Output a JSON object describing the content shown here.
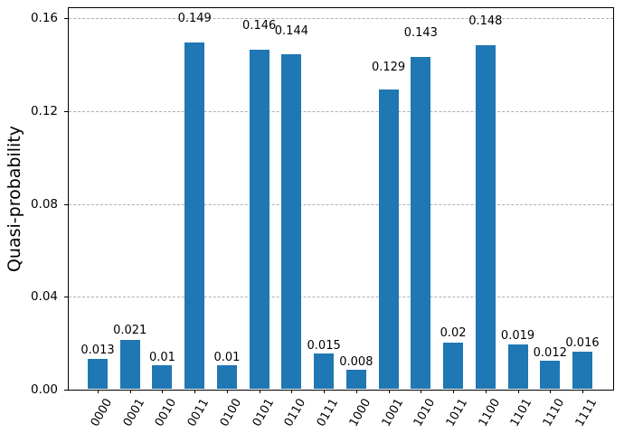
{
  "chart_data": {
    "type": "bar",
    "title": "",
    "xlabel": "",
    "ylabel": "Quasi-probability",
    "categories": [
      "0000",
      "0001",
      "0010",
      "0011",
      "0100",
      "0101",
      "0110",
      "0111",
      "1000",
      "1001",
      "1010",
      "1011",
      "1100",
      "1101",
      "1110",
      "1111"
    ],
    "values": [
      0.013,
      0.021,
      0.01,
      0.149,
      0.01,
      0.146,
      0.144,
      0.015,
      0.008,
      0.129,
      0.143,
      0.02,
      0.148,
      0.019,
      0.012,
      0.016
    ],
    "value_labels": [
      "0.013",
      "0.021",
      "0.01",
      "0.149",
      "0.01",
      "0.146",
      "0.144",
      "0.015",
      "0.008",
      "0.129",
      "0.143",
      "0.02",
      "0.148",
      "0.019",
      "0.012",
      "0.016"
    ],
    "ylim": [
      0,
      0.1643
    ],
    "ytick_values": [
      0,
      0.04,
      0.08,
      0.12,
      0.16
    ],
    "ytick_labels": [
      "0.00",
      "0.04",
      "0.08",
      "0.12",
      "0.16"
    ],
    "bar_color": "#1f77b4",
    "grid": {
      "axis": "y",
      "style": "dashed",
      "color": "#b0b0b0"
    },
    "legend": null,
    "xtick_rotation_deg": 60
  }
}
